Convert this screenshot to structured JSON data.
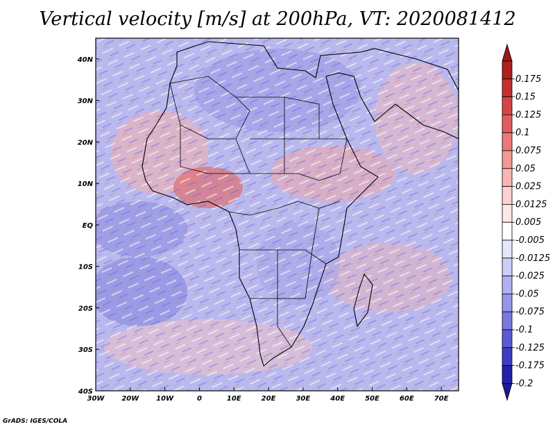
{
  "title": "Vertical velocity [m/s] at 200hPa, VT: 2020081412",
  "credit": "GrADS: IGES/COLA",
  "map": {
    "lon_range": [
      -30,
      75
    ],
    "lat_range": [
      -40,
      45
    ],
    "x_ticks": [
      {
        "lon": -30,
        "label": "30W"
      },
      {
        "lon": -20,
        "label": "20W"
      },
      {
        "lon": -10,
        "label": "10W"
      },
      {
        "lon": 0,
        "label": "0"
      },
      {
        "lon": 10,
        "label": "10E"
      },
      {
        "lon": 20,
        "label": "20E"
      },
      {
        "lon": 30,
        "label": "30E"
      },
      {
        "lon": 40,
        "label": "40E"
      },
      {
        "lon": 50,
        "label": "50E"
      },
      {
        "lon": 60,
        "label": "60E"
      },
      {
        "lon": 70,
        "label": "70E"
      }
    ],
    "y_ticks": [
      {
        "lat": 40,
        "label": "40N"
      },
      {
        "lat": 30,
        "label": "30N"
      },
      {
        "lat": 20,
        "label": "20N"
      },
      {
        "lat": 10,
        "label": "10N"
      },
      {
        "lat": 0,
        "label": "EQ"
      },
      {
        "lat": -10,
        "label": "10S"
      },
      {
        "lat": -20,
        "label": "20S"
      },
      {
        "lat": -30,
        "label": "30S"
      },
      {
        "lat": -40,
        "label": "40S"
      }
    ]
  },
  "colorbar": {
    "levels": [
      {
        "label": "0.175",
        "color": "#b01e1e"
      },
      {
        "label": "0.15",
        "color": "#c43030"
      },
      {
        "label": "0.125",
        "color": "#d44646"
      },
      {
        "label": "0.1",
        "color": "#e05e5e"
      },
      {
        "label": "0.075",
        "color": "#ea7a78"
      },
      {
        "label": "0.05",
        "color": "#f29896"
      },
      {
        "label": "0.025",
        "color": "#f7b6b4"
      },
      {
        "label": "0.0125",
        "color": "#fbd2d0"
      },
      {
        "label": "0.005",
        "color": "#fde8e6"
      },
      {
        "label": "-0.005",
        "color": "#ffffff"
      },
      {
        "label": "-0.0125",
        "color": "#e6e6fb"
      },
      {
        "label": "-0.025",
        "color": "#cdcdf6"
      },
      {
        "label": "-0.05",
        "color": "#b1b1f0"
      },
      {
        "label": "-0.075",
        "color": "#9696ea"
      },
      {
        "label": "-0.1",
        "color": "#7878e0"
      },
      {
        "label": "-0.125",
        "color": "#5a5ad4"
      },
      {
        "label": "-0.175",
        "color": "#3c3cc4"
      },
      {
        "label": "-0.2",
        "color": "#2020aa"
      }
    ],
    "top_color": "#9e1616",
    "bottom_color": "#1a1a96"
  }
}
